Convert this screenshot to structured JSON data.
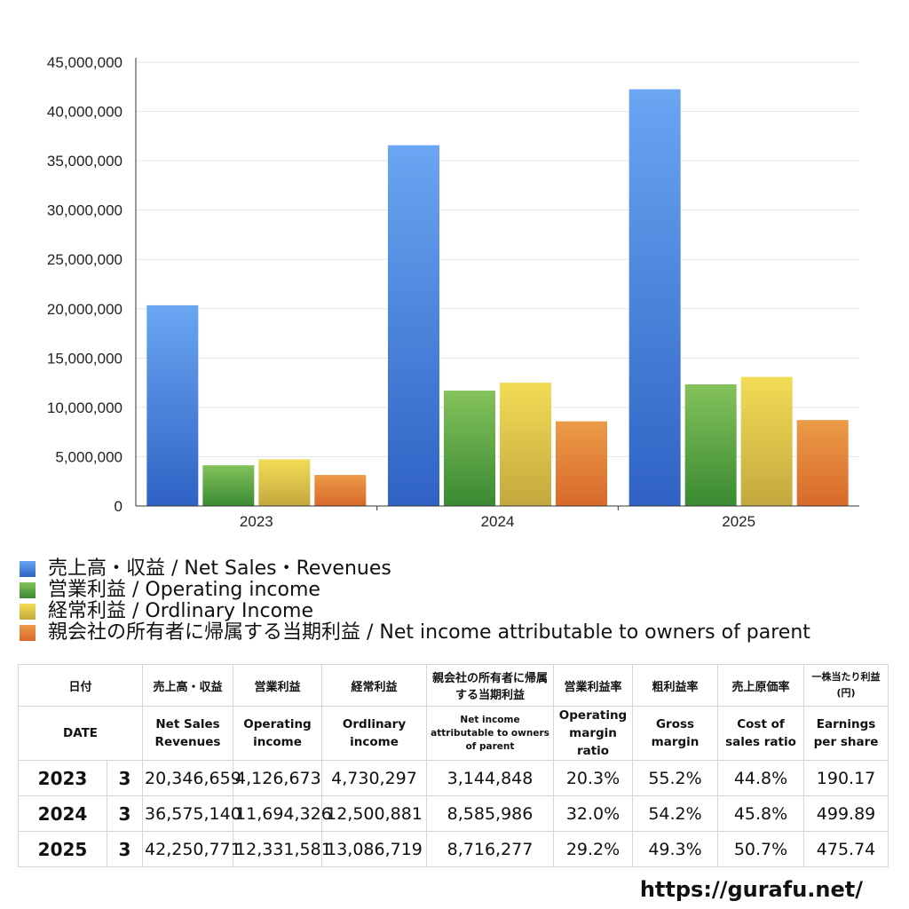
{
  "chart_data": {
    "type": "bar",
    "categories": [
      "2023",
      "2024",
      "2025"
    ],
    "series": [
      {
        "name": "売上高・収益 / Net Sales・Revenues",
        "values": [
          20346659,
          36575140,
          42250771
        ],
        "color": "#4a86e0"
      },
      {
        "name": "営業利益 / Operating income",
        "values": [
          4126673,
          11694326,
          12331581
        ],
        "color": "#5aa646"
      },
      {
        "name": "経常利益 / Ordlinary Income",
        "values": [
          4730297,
          12500881,
          13086719
        ],
        "color": "#e0c44a"
      },
      {
        "name": "親会社の所有者に帰属する当期利益 / Net income attributable to owners of parent",
        "values": [
          3144848,
          8585986,
          8716277
        ],
        "color": "#e2823a"
      }
    ],
    "yticks": [
      "0",
      "5,000,000",
      "10,000,000",
      "15,000,000",
      "20,000,000",
      "25,000,000",
      "30,000,000",
      "35,000,000",
      "40,000,000",
      "45,000,000"
    ],
    "ylim": [
      0,
      45000000
    ],
    "grid": true,
    "legend_position": "bottom-left"
  },
  "table": {
    "header_jp": [
      "日付",
      "売上高・収益",
      "営業利益",
      "経常利益",
      "親会社の所有者に帰属する当期利益",
      "営業利益率",
      "粗利益率",
      "売上原価率",
      "一株当たり利益(円)"
    ],
    "header_en": [
      "DATE",
      "Net Sales Revenues",
      "Operating income",
      "Ordlinary income",
      "Net income attributable to owners of parent",
      "Operating margin ratio",
      "Gross margin",
      "Cost of sales ratio",
      "Earnings per share"
    ],
    "rows": [
      {
        "year": "2023",
        "month": "3",
        "sales": "20,346,659",
        "op": "4,126,673",
        "ord": "4,730,297",
        "net": "3,144,848",
        "op_ratio": "20.3%",
        "gross": "55.2%",
        "cost": "44.8%",
        "eps": "190.17"
      },
      {
        "year": "2024",
        "month": "3",
        "sales": "36,575,140",
        "op": "11,694,326",
        "ord": "12,500,881",
        "net": "8,585,986",
        "op_ratio": "32.0%",
        "gross": "54.2%",
        "cost": "45.8%",
        "eps": "499.89"
      },
      {
        "year": "2025",
        "month": "3",
        "sales": "42,250,771",
        "op": "12,331,581",
        "ord": "13,086,719",
        "net": "8,716,277",
        "op_ratio": "29.2%",
        "gross": "49.3%",
        "cost": "50.7%",
        "eps": "475.74"
      }
    ]
  },
  "footer": {
    "site": "https://gurafu.net/"
  }
}
